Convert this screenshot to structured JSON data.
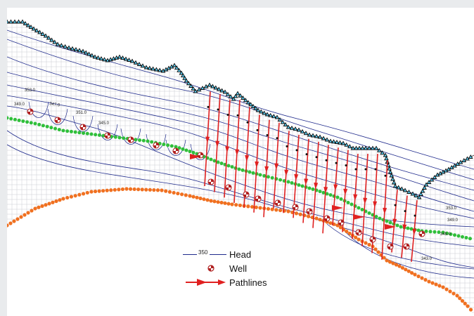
{
  "legend": {
    "head_label": "Head",
    "head_value": "350",
    "well_label": "Well",
    "pathlines_label": "Pathlines"
  },
  "contour_labels": [
    "353.0",
    "349.0",
    "347.0",
    "351.0",
    "345.0",
    "353.0",
    "349.0",
    "345.0",
    "343.0"
  ],
  "colors": {
    "grid": "#c9cdd2",
    "contour": "#1f2a8c",
    "no_flow_boundary": "#0a0a0a",
    "boundary_marker": "#58d0f5",
    "river": "#2fbf3a",
    "constant_head": "#f07020",
    "pathline": "#e02020",
    "well": "#b02020"
  },
  "icons": {
    "boundary_marker": "triangle",
    "river_cell": "green-dot",
    "constant_head_cell": "orange-dot",
    "well": "well-circle",
    "pathline": "red-arrow"
  }
}
